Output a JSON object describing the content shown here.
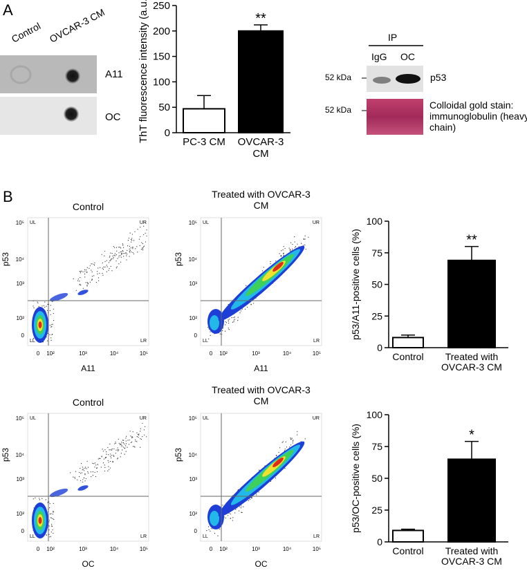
{
  "panel_a": {
    "label": "A",
    "dot_blot": {
      "columns": [
        "Control",
        "OVCAR-3 CM"
      ],
      "rows": [
        "A11",
        "OC"
      ]
    },
    "ip_blot": {
      "header": "IP",
      "lanes": [
        "IgG",
        "OC"
      ],
      "markers": [
        "52 kDa",
        "52 kDa"
      ],
      "labels": [
        "p53",
        "Colloidal gold stain: immunoglobulin (heavy chain)"
      ]
    }
  },
  "panel_b": {
    "label": "B",
    "flow_plots": [
      {
        "title": "Control",
        "x_label": "A11",
        "y_label": "p53"
      },
      {
        "title": "Treated with OVCAR-3 CM",
        "x_label": "A11",
        "y_label": "p53"
      },
      {
        "title": "Control",
        "x_label": "OC",
        "y_label": "p53"
      },
      {
        "title": "Treated with OVCAR-3 CM",
        "x_label": "OC",
        "y_label": "p53"
      }
    ],
    "flow_x_ticks": [
      "0",
      "10²",
      "10³",
      "10⁴",
      "10⁵"
    ],
    "flow_y_ticks": [
      "10⁵",
      "10⁴",
      "10³",
      "10²",
      "0"
    ],
    "quadrants": [
      "UL",
      "UR",
      "LL",
      "LR"
    ]
  },
  "chart_data": [
    {
      "type": "bar",
      "y_label": "ThT fluorescence intensity (a.u.)",
      "categories": [
        "PC-3 CM",
        "OVCAR-3 CM"
      ],
      "values": [
        47,
        200
      ],
      "errors": [
        26,
        12
      ],
      "value_annotations": [
        null,
        "**"
      ],
      "colors": [
        "#ffffff",
        "#000000"
      ],
      "ylim": [
        0,
        250
      ],
      "yticks": [
        0,
        50,
        100,
        150,
        200,
        250
      ]
    },
    {
      "type": "bar",
      "y_label": "p53/A11-positive cells (%)",
      "categories": [
        "Control",
        "Treated with OVCAR-3 CM"
      ],
      "values": [
        8,
        69
      ],
      "errors": [
        2,
        11
      ],
      "value_annotations": [
        null,
        "**"
      ],
      "colors": [
        "#ffffff",
        "#000000"
      ],
      "ylim": [
        0,
        100
      ],
      "yticks": [
        0,
        25,
        50,
        75,
        100
      ]
    },
    {
      "type": "bar",
      "y_label": "p53/OC-positive cells (%)",
      "categories": [
        "Control",
        "Treated with OVCAR-3 CM"
      ],
      "values": [
        9,
        65
      ],
      "errors": [
        1,
        14
      ],
      "value_annotations": [
        null,
        "*"
      ],
      "colors": [
        "#ffffff",
        "#000000"
      ],
      "ylim": [
        0,
        100
      ],
      "yticks": [
        0,
        25,
        50,
        75,
        100
      ]
    }
  ]
}
